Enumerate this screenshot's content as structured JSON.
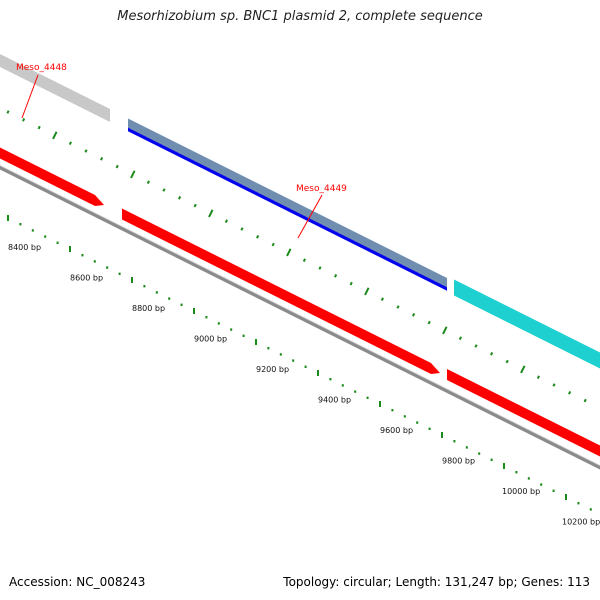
{
  "title": "Mesorhizobium sp. BNC1 plasmid 2, complete sequence",
  "accession_text": "Accession: NC_008243",
  "summary_text": "Topology: circular; Length: 131,247 bp; Genes: 113",
  "colors": {
    "backbone": "#8a8a8a",
    "cds_red": "#ff0000",
    "gene_gray": "#c8c8c8",
    "gene_steelblue": "#6f8eb0",
    "gene_blue": "#0000ee",
    "gene_cyan": "#1fd0d0",
    "tick_green": "#1a8a1a",
    "label_red": "#ff0000"
  },
  "genes": [
    {
      "name": "Meso_4448",
      "color": "gene_gray",
      "labeled": true
    },
    {
      "name": "Meso_4449",
      "color": "gene_steelblue",
      "labeled": true
    },
    {
      "name": "",
      "color": "gene_cyan",
      "labeled": false
    }
  ],
  "bp_ticks": [
    "8400 bp",
    "8600 bp",
    "8800 bp",
    "9000 bp",
    "9200 bp",
    "9400 bp",
    "9600 bp",
    "9800 bp",
    "10000 bp",
    "10200 bp"
  ]
}
